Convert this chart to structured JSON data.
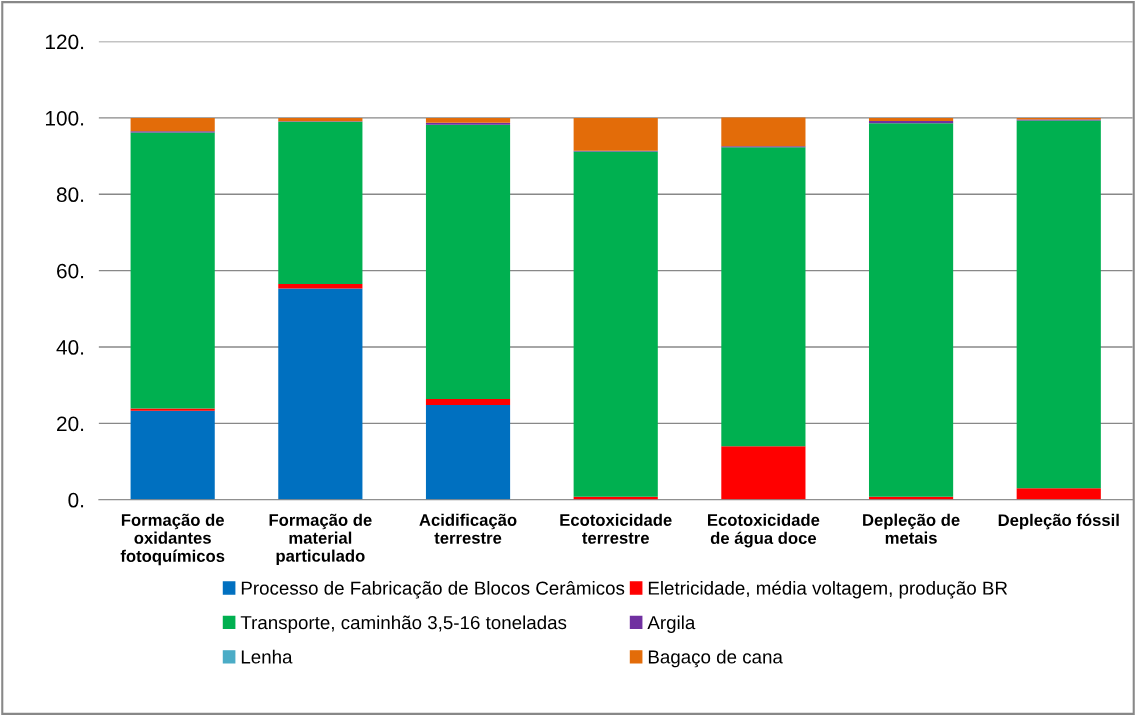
{
  "chart_data": {
    "type": "bar",
    "stacked": true,
    "categories": [
      "Formação de\noxidantes\nfotoquímicos",
      "Formação de\nmaterial\nparticulado",
      "Acidificação\nterrestre",
      "Ecotoxicidade\nterrestre",
      "Ecotoxicidade\nde água doce",
      "Depleção de\nmetais",
      "Depleção fóssil"
    ],
    "series": [
      {
        "name": "Processo de Fabricação de Blocos Cerâmicos",
        "color": "#0070c0",
        "values": [
          23.3,
          55.3,
          24.8,
          0,
          0,
          0,
          0
        ]
      },
      {
        "name": "Eletricidade, média voltagem, produção BR",
        "color": "#ff0000",
        "values": [
          0.6,
          1.2,
          1.6,
          0.8,
          14.0,
          0.8,
          3.0
        ]
      },
      {
        "name": "Transporte, caminhão 3,5-16 toneladas",
        "color": "#00b050",
        "values": [
          72.3,
          42.5,
          71.8,
          90.4,
          78.3,
          97.8,
          96.3
        ]
      },
      {
        "name": "Argila",
        "color": "#7030a0",
        "values": [
          0.3,
          0.1,
          0.5,
          0.2,
          0.3,
          0.6,
          0.3
        ]
      },
      {
        "name": "Lenha",
        "color": "#4bacc6",
        "values": [
          0,
          0,
          0,
          0,
          0,
          0,
          0
        ]
      },
      {
        "name": "Bagaço de cana",
        "color": "#e36c09",
        "values": [
          3.5,
          0.9,
          1.3,
          8.6,
          7.5,
          0.8,
          0.4
        ]
      }
    ],
    "ylim": [
      0,
      120
    ],
    "yticks": [
      {
        "value": 0,
        "label": "0."
      },
      {
        "value": 20,
        "label": "20."
      },
      {
        "value": 40,
        "label": "40."
      },
      {
        "value": 60,
        "label": "60."
      },
      {
        "value": 80,
        "label": "80."
      },
      {
        "value": 100,
        "label": "100."
      },
      {
        "value": 120,
        "label": "120."
      }
    ],
    "grid": "y",
    "legend": "bottom"
  }
}
